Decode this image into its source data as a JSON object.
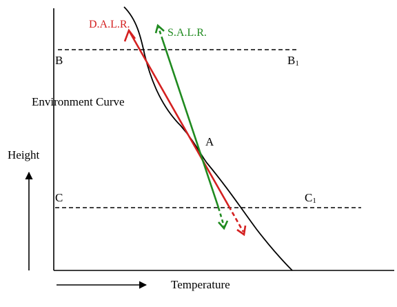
{
  "labels": {
    "dalr": "D.A.L.R.",
    "salr": "S.A.L.R.",
    "b": "B",
    "b1_letter": "B",
    "b1_sub": "1",
    "environment_curve": "Environment Curve",
    "point_a": "A",
    "height": "Height",
    "c": "C",
    "c1_letter": "C",
    "c1_sub": "1",
    "temperature": "Temperature"
  },
  "colors": {
    "dalr": "#d42020",
    "salr": "#1f8a1f",
    "ink": "#000000",
    "background": "#ffffff"
  }
}
